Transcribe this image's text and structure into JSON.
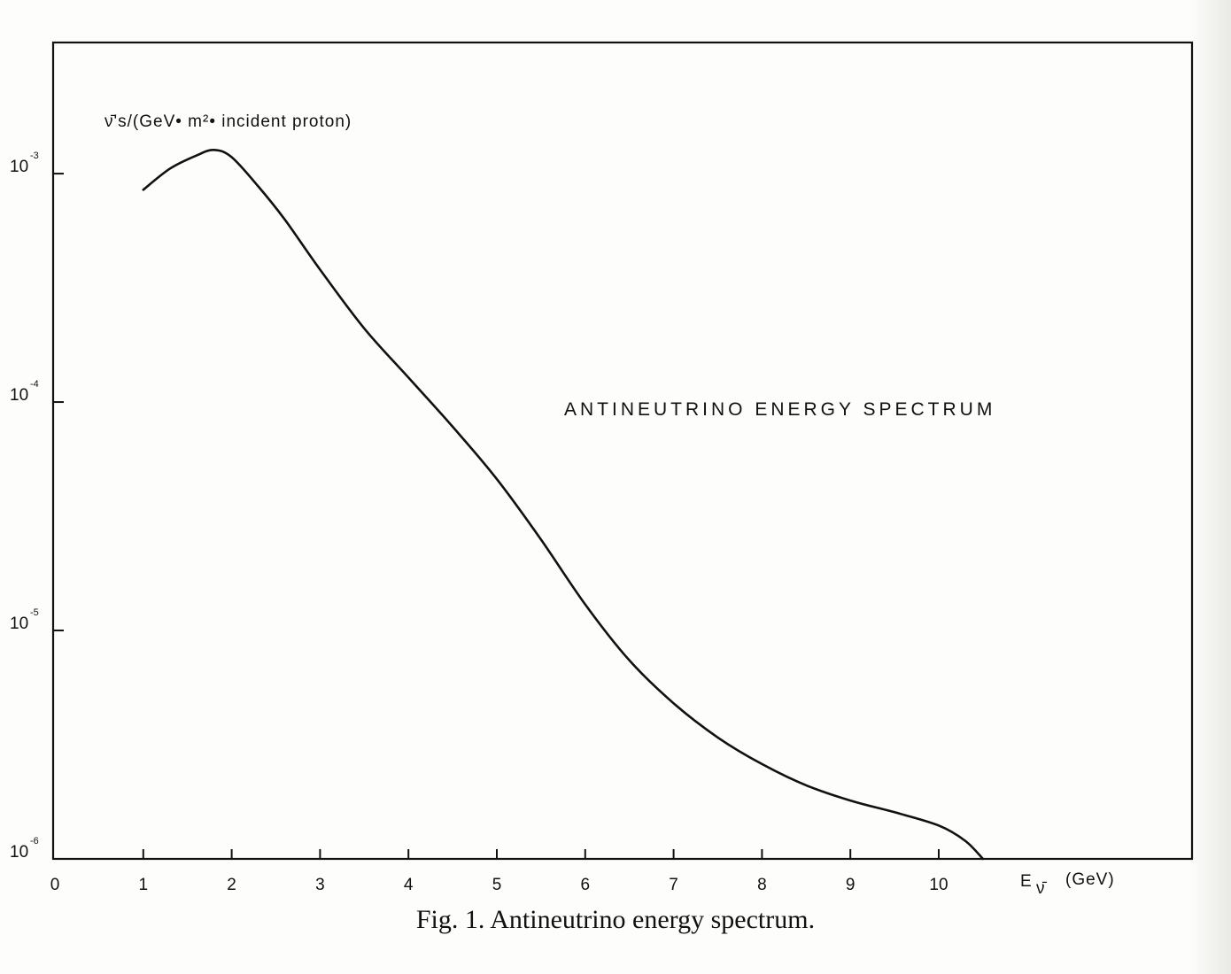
{
  "figure": {
    "caption": "Fig. 1. Antineutrino energy spectrum."
  },
  "chart_data": {
    "type": "line",
    "title": "ANTINEUTRINO ENERGY SPECTRUM",
    "ylabel": "ν̄'s/(GeV• m²• incident proton)",
    "xlabel_main": "E",
    "xlabel_sub": "ν̄",
    "xlabel_unit": "(GeV)",
    "xlim": [
      0,
      12
    ],
    "ylim": [
      1e-06,
      0.00375
    ],
    "yscale": "log",
    "xticks": [
      0,
      1,
      2,
      3,
      4,
      5,
      6,
      7,
      8,
      9,
      10
    ],
    "yticks": [
      {
        "value": 0.001,
        "base": "10",
        "exp": "-3"
      },
      {
        "value": 0.0001,
        "base": "10",
        "exp": "-4"
      },
      {
        "value": 1e-05,
        "base": "10",
        "exp": "-5"
      },
      {
        "value": 1e-06,
        "base": "10",
        "exp": "-6"
      }
    ],
    "grid": false,
    "legend": "none",
    "line_color": "#111111",
    "series": [
      {
        "x": [
          1.0,
          1.3,
          1.6,
          1.8,
          2.0,
          2.3,
          2.6,
          3.0,
          3.5,
          4.0,
          4.5,
          5.0,
          5.5,
          6.0,
          6.5,
          7.0,
          7.5,
          8.0,
          8.5,
          9.0,
          9.5,
          10.0,
          10.3,
          10.5
        ],
        "y": [
          0.00085,
          0.00105,
          0.0012,
          0.00127,
          0.00118,
          0.00088,
          0.00063,
          0.00038,
          0.00021,
          0.000128,
          7.8e-05,
          4.6e-05,
          2.5e-05,
          1.3e-05,
          7.4e-06,
          4.8e-06,
          3.4e-06,
          2.6e-06,
          2.1e-06,
          1.8e-06,
          1.6e-06,
          1.4e-06,
          1.2e-06,
          1e-06
        ]
      }
    ]
  }
}
